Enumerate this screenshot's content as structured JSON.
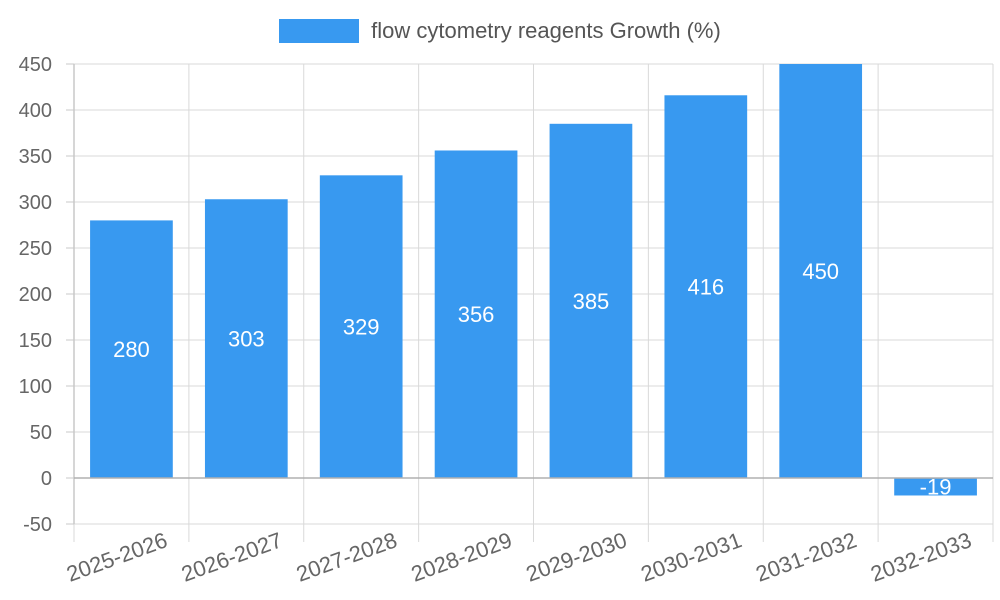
{
  "chart_data": {
    "type": "bar",
    "title": "",
    "xlabel": "",
    "ylabel": "",
    "categories": [
      "2025-2026",
      "2026-2027",
      "2027-2028",
      "2028-2029",
      "2029-2030",
      "2030-2031",
      "2031-2032",
      "2032-2033"
    ],
    "series": [
      {
        "name": "flow cytometry reagents Growth (%)",
        "values": [
          280,
          303,
          329,
          356,
          385,
          416,
          450,
          -19
        ]
      }
    ],
    "ylim": [
      -50,
      450
    ],
    "yticks": [
      -50,
      0,
      50,
      100,
      150,
      200,
      250,
      300,
      350,
      400,
      450
    ],
    "grid": true,
    "legend_position": "top-center",
    "data_labels": true,
    "colors": {
      "bar": "#3899f0",
      "grid": "#d9d9d9",
      "axis": "#c8c8c8",
      "tick_text": "#666666",
      "label_text": "#ffffff"
    }
  }
}
